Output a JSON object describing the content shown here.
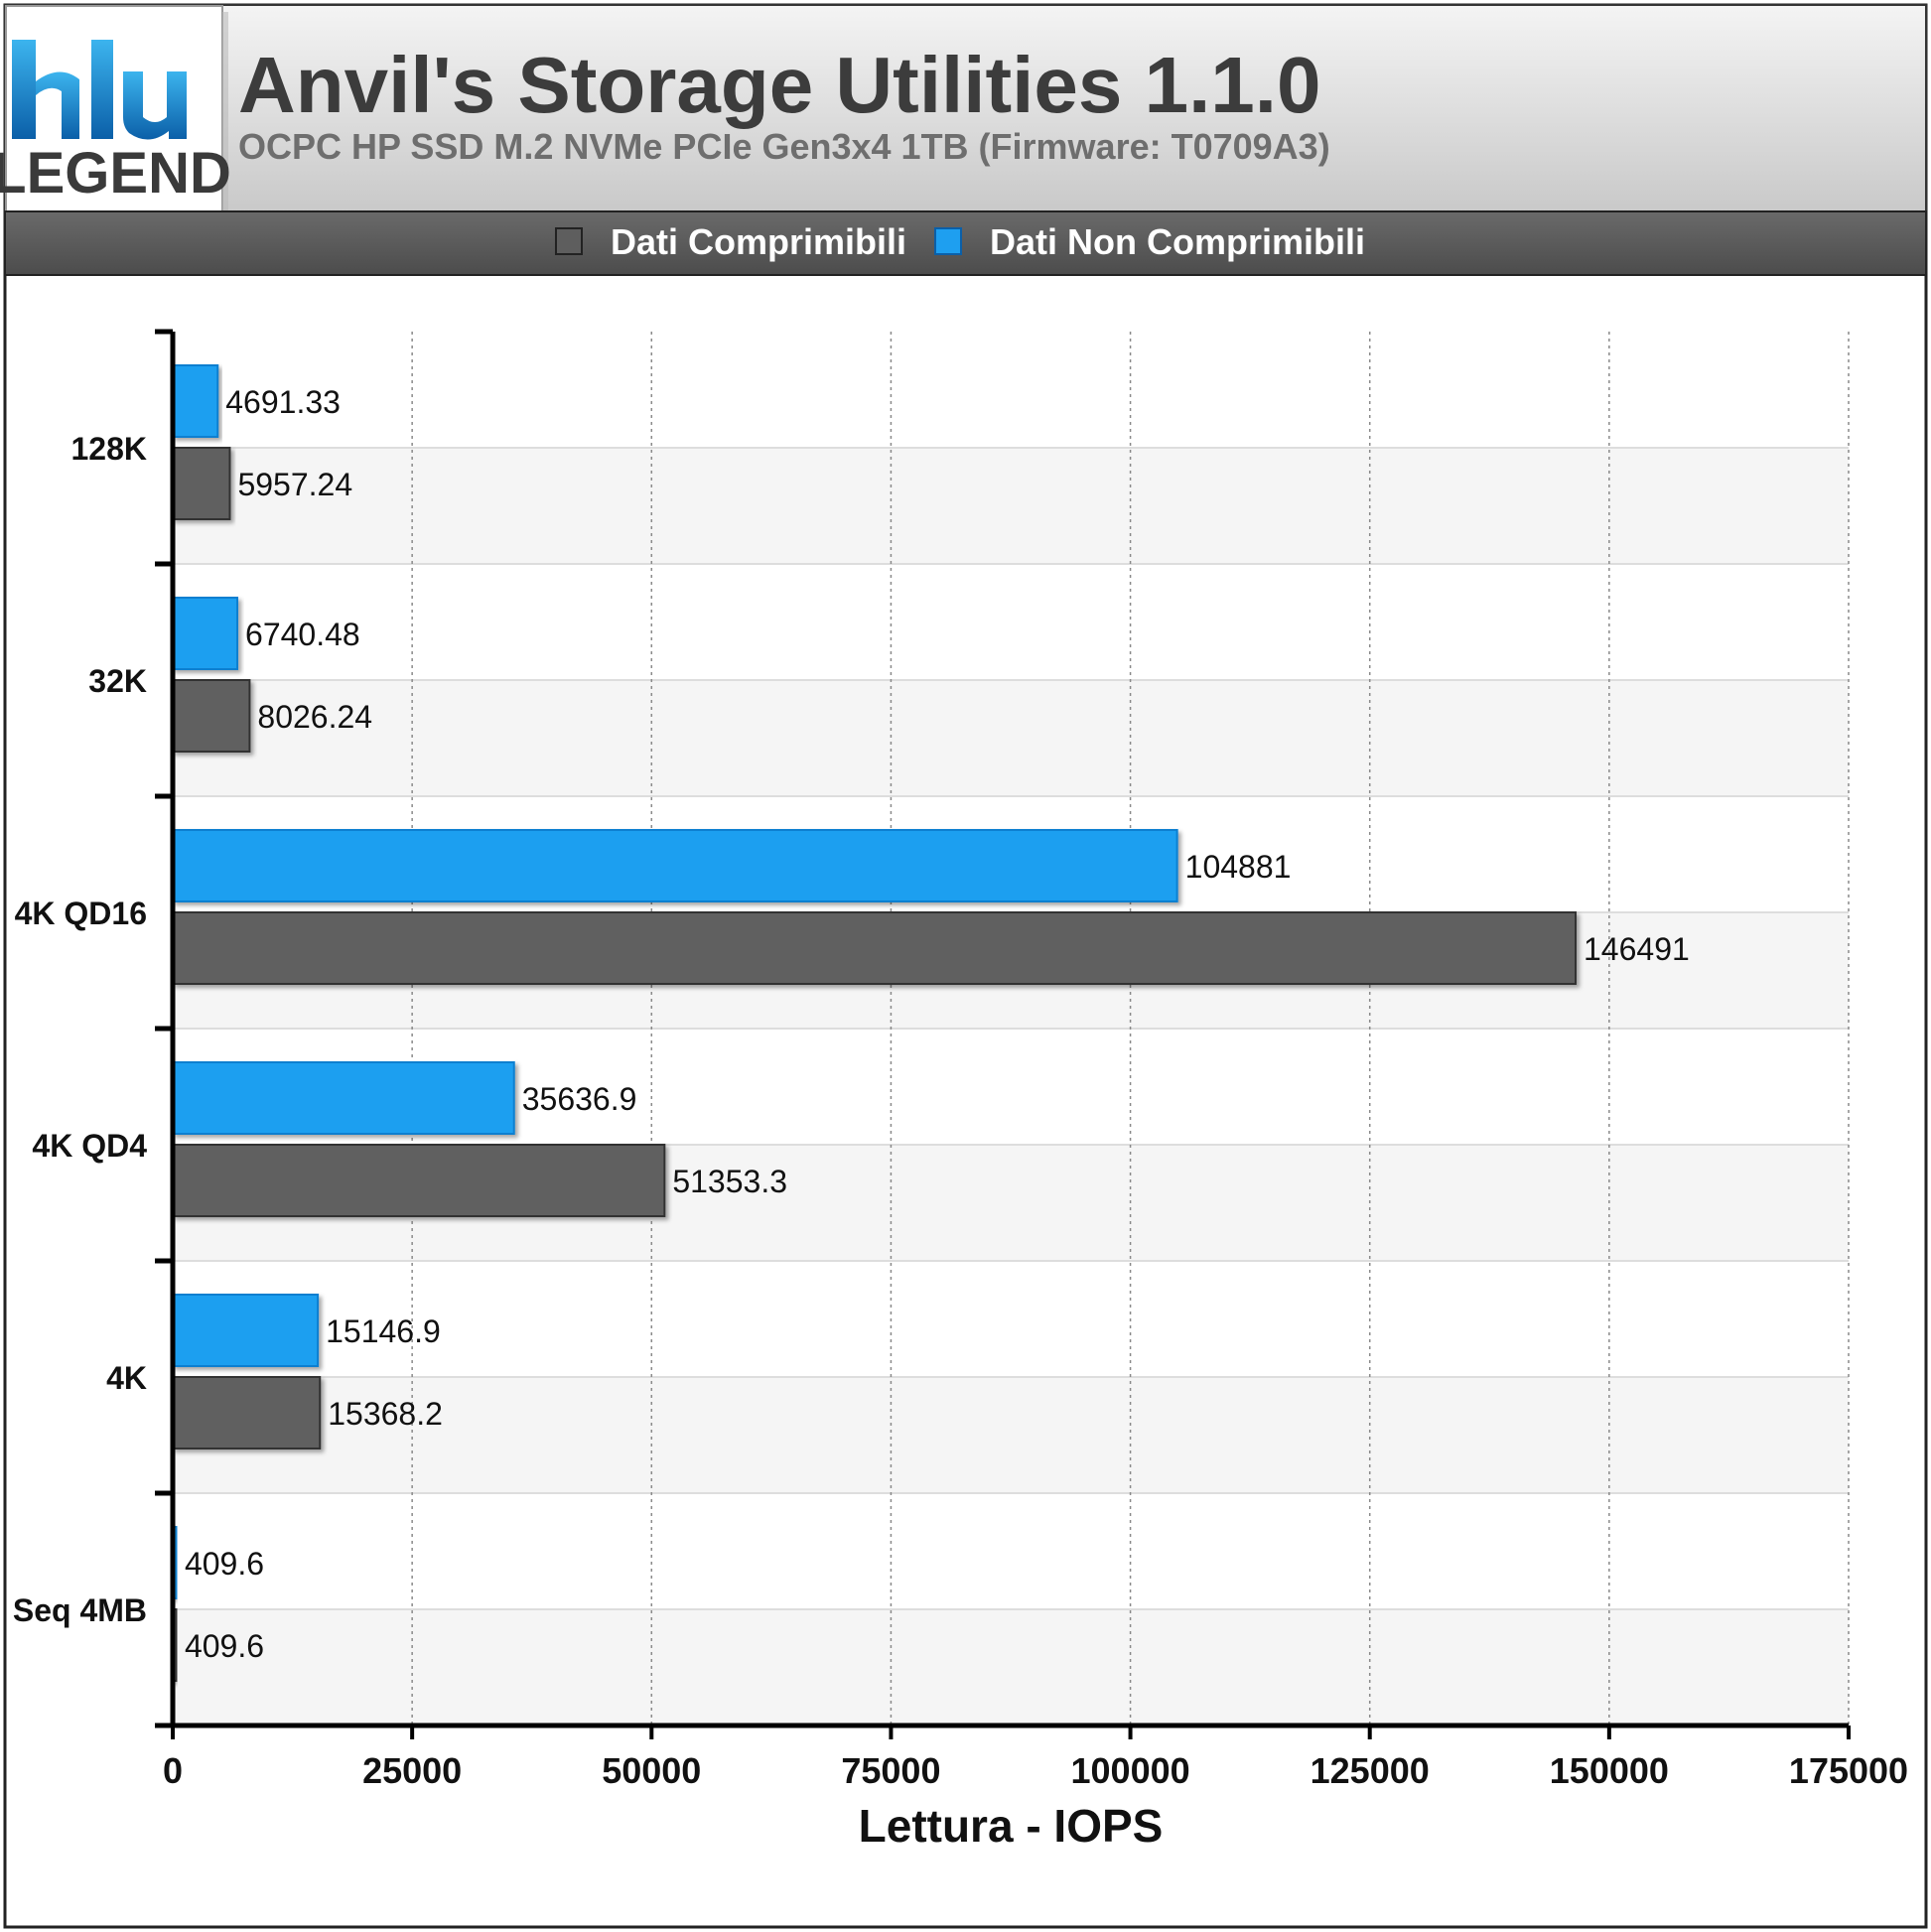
{
  "header": {
    "title": "Anvil's Storage Utilities 1.1.0",
    "subtitle": "OCPC HP SSD M.2 NVMe PCIe Gen3x4 1TB (Firmware: T0709A3)",
    "logo_text": "LEGEND"
  },
  "legend": {
    "items": [
      {
        "label": "Dati Comprimibili",
        "color": "#606060"
      },
      {
        "label": "Dati Non Comprimibili",
        "color": "#1e9ff0"
      }
    ]
  },
  "colors": {
    "compressible": "#606060",
    "incompressible": "#1e9ff0",
    "header_bg_top": "#f2f2f2",
    "header_bg_bottom": "#c8c8c8",
    "legend_bar": "#5e5e5e"
  },
  "chart_data": {
    "type": "bar",
    "orientation": "horizontal",
    "title": "Anvil's Storage Utilities 1.1.0",
    "subtitle": "OCPC HP SSD M.2 NVMe PCIe Gen3x4 1TB (Firmware: T0709A3)",
    "xlabel": "Lettura - IOPS",
    "ylabel": "",
    "xlim": [
      0,
      175000
    ],
    "xticks": [
      0,
      25000,
      50000,
      75000,
      100000,
      125000,
      150000,
      175000
    ],
    "xtick_labels": [
      "0",
      "25000",
      "50000",
      "75000",
      "100000",
      "125000",
      "150000",
      "175000"
    ],
    "categories": [
      "128K",
      "32K",
      "4K QD16",
      "4K QD4",
      "4K",
      "Seq 4MB"
    ],
    "grid": true,
    "legend_position": "top",
    "series": [
      {
        "name": "Dati Non Comprimibili",
        "color": "#1e9ff0",
        "values": [
          4691.33,
          6740.48,
          104881,
          35636.9,
          15146.9,
          409.6
        ],
        "labels": [
          "4691.33",
          "6740.48",
          "104881",
          "35636.9",
          "15146.9",
          "409.6"
        ]
      },
      {
        "name": "Dati Comprimibili",
        "color": "#606060",
        "values": [
          5957.24,
          8026.24,
          146491,
          51353.3,
          15368.2,
          409.6
        ],
        "labels": [
          "5957.24",
          "8026.24",
          "146491",
          "51353.3",
          "15368.2",
          "409.6"
        ]
      }
    ]
  }
}
